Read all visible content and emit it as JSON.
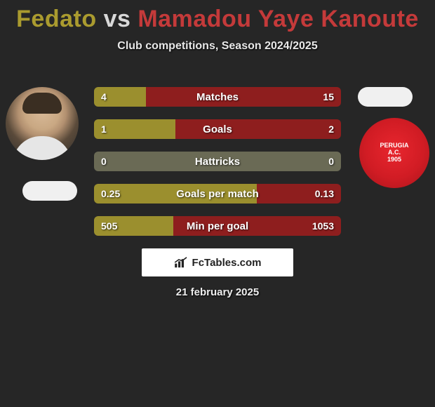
{
  "header": {
    "player1": "Fedato",
    "vs": "vs",
    "player2": "Mamadou Yaye Kanoute",
    "player1_color": "#aa9b2f",
    "player2_color": "#c43a3a",
    "subtitle": "Club competitions, Season 2024/2025"
  },
  "badge": {
    "line1": "PERUGIA",
    "line2": "A.C.",
    "line3": "1905"
  },
  "stats": {
    "rows": [
      {
        "label": "Matches",
        "left": "4",
        "right": "15",
        "left_pct": 21,
        "right_pct": 79
      },
      {
        "label": "Goals",
        "left": "1",
        "right": "2",
        "left_pct": 33,
        "right_pct": 67
      },
      {
        "label": "Hattricks",
        "left": "0",
        "right": "0",
        "left_pct": 50,
        "right_pct": 50
      },
      {
        "label": "Goals per match",
        "left": "0.25",
        "right": "0.13",
        "left_pct": 66,
        "right_pct": 34
      },
      {
        "label": "Min per goal",
        "left": "505",
        "right": "1053",
        "left_pct": 32,
        "right_pct": 68
      }
    ],
    "left_color": "#9b8f2e",
    "right_color": "#8e1e1e",
    "neutral_color": "#6a6a55"
  },
  "branding": {
    "text": "FcTables.com"
  },
  "date": "21 february 2025"
}
